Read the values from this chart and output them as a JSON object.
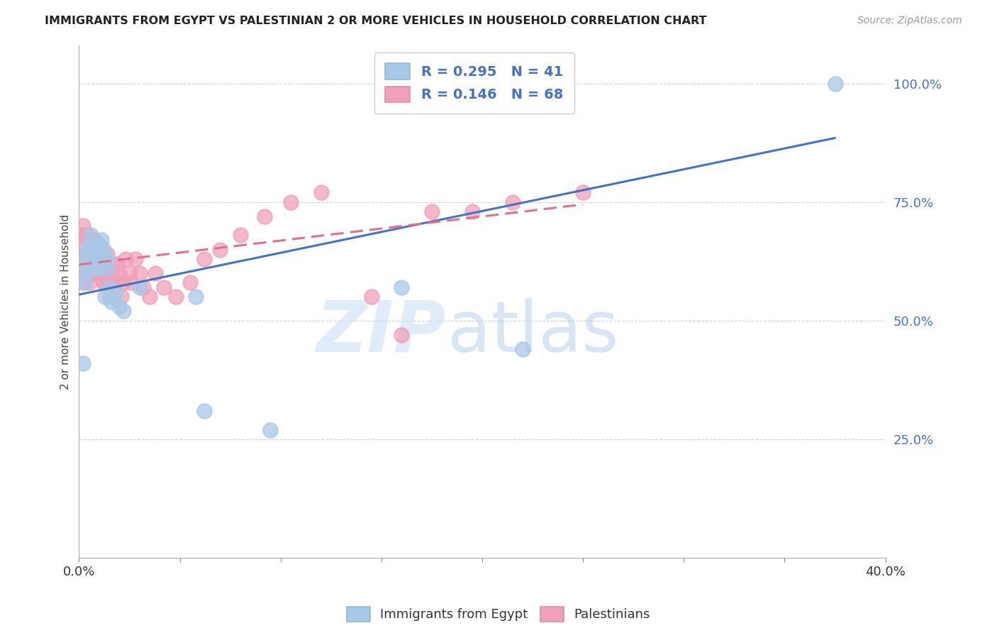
{
  "title": "IMMIGRANTS FROM EGYPT VS PALESTINIAN 2 OR MORE VEHICLES IN HOUSEHOLD CORRELATION CHART",
  "source": "Source: ZipAtlas.com",
  "ylabel": "2 or more Vehicles in Household",
  "xlim": [
    0.0,
    0.4
  ],
  "ylim": [
    0.0,
    1.08
  ],
  "ytick_vals": [
    0.25,
    0.5,
    0.75,
    1.0
  ],
  "ytick_labels": [
    "25.0%",
    "50.0%",
    "75.0%",
    "100.0%"
  ],
  "xtick_vals": [
    0.0,
    0.05,
    0.1,
    0.15,
    0.2,
    0.25,
    0.3,
    0.35,
    0.4
  ],
  "xtick_labels": [
    "0.0%",
    "",
    "",
    "",
    "",
    "",
    "",
    "",
    "40.0%"
  ],
  "blue_color": "#a8c8e8",
  "pink_color": "#f0a0b8",
  "line_blue_color": "#4472c4",
  "line_pink_color": "#e07090",
  "label1": "Immigrants from Egypt",
  "label2": "Palestinians",
  "watermark_zip": "ZIP",
  "watermark_atlas": "atlas",
  "egypt_x": [
    0.001,
    0.002,
    0.003,
    0.003,
    0.004,
    0.004,
    0.005,
    0.005,
    0.005,
    0.006,
    0.006,
    0.006,
    0.007,
    0.007,
    0.007,
    0.008,
    0.008,
    0.009,
    0.009,
    0.01,
    0.01,
    0.011,
    0.011,
    0.012,
    0.012,
    0.013,
    0.013,
    0.014,
    0.014,
    0.015,
    0.016,
    0.018,
    0.02,
    0.022,
    0.03,
    0.058,
    0.062,
    0.095,
    0.16,
    0.22,
    0.375
  ],
  "egypt_y": [
    0.6,
    0.41,
    0.63,
    0.58,
    0.61,
    0.65,
    0.63,
    0.66,
    0.64,
    0.62,
    0.65,
    0.68,
    0.62,
    0.65,
    0.63,
    0.61,
    0.66,
    0.63,
    0.61,
    0.64,
    0.66,
    0.63,
    0.67,
    0.62,
    0.65,
    0.63,
    0.55,
    0.61,
    0.63,
    0.57,
    0.54,
    0.56,
    0.53,
    0.52,
    0.57,
    0.55,
    0.31,
    0.27,
    0.57,
    0.44,
    1.0
  ],
  "pales_x": [
    0.001,
    0.001,
    0.002,
    0.002,
    0.002,
    0.003,
    0.003,
    0.003,
    0.004,
    0.004,
    0.004,
    0.005,
    0.005,
    0.005,
    0.006,
    0.006,
    0.006,
    0.007,
    0.007,
    0.008,
    0.008,
    0.008,
    0.009,
    0.009,
    0.009,
    0.01,
    0.01,
    0.011,
    0.011,
    0.012,
    0.012,
    0.013,
    0.013,
    0.014,
    0.014,
    0.015,
    0.015,
    0.016,
    0.017,
    0.017,
    0.018,
    0.019,
    0.02,
    0.021,
    0.022,
    0.023,
    0.025,
    0.026,
    0.028,
    0.03,
    0.032,
    0.035,
    0.038,
    0.042,
    0.048,
    0.055,
    0.062,
    0.07,
    0.08,
    0.092,
    0.105,
    0.12,
    0.145,
    0.16,
    0.175,
    0.195,
    0.215,
    0.25
  ],
  "pales_y": [
    0.62,
    0.68,
    0.58,
    0.65,
    0.7,
    0.6,
    0.64,
    0.68,
    0.6,
    0.64,
    0.68,
    0.58,
    0.62,
    0.66,
    0.6,
    0.63,
    0.67,
    0.6,
    0.63,
    0.6,
    0.63,
    0.67,
    0.6,
    0.62,
    0.66,
    0.6,
    0.63,
    0.6,
    0.64,
    0.58,
    0.62,
    0.58,
    0.62,
    0.6,
    0.64,
    0.58,
    0.55,
    0.6,
    0.57,
    0.62,
    0.58,
    0.62,
    0.6,
    0.55,
    0.58,
    0.63,
    0.6,
    0.58,
    0.63,
    0.6,
    0.57,
    0.55,
    0.6,
    0.57,
    0.55,
    0.58,
    0.63,
    0.65,
    0.68,
    0.72,
    0.75,
    0.77,
    0.55,
    0.47,
    0.73,
    0.73,
    0.75,
    0.77
  ],
  "line_blue_x0": 0.0,
  "line_blue_y0": 0.555,
  "line_blue_x1": 0.375,
  "line_blue_y1": 0.885,
  "line_pink_x0": 0.0,
  "line_pink_y0": 0.618,
  "line_pink_x1": 0.25,
  "line_pink_y1": 0.745
}
